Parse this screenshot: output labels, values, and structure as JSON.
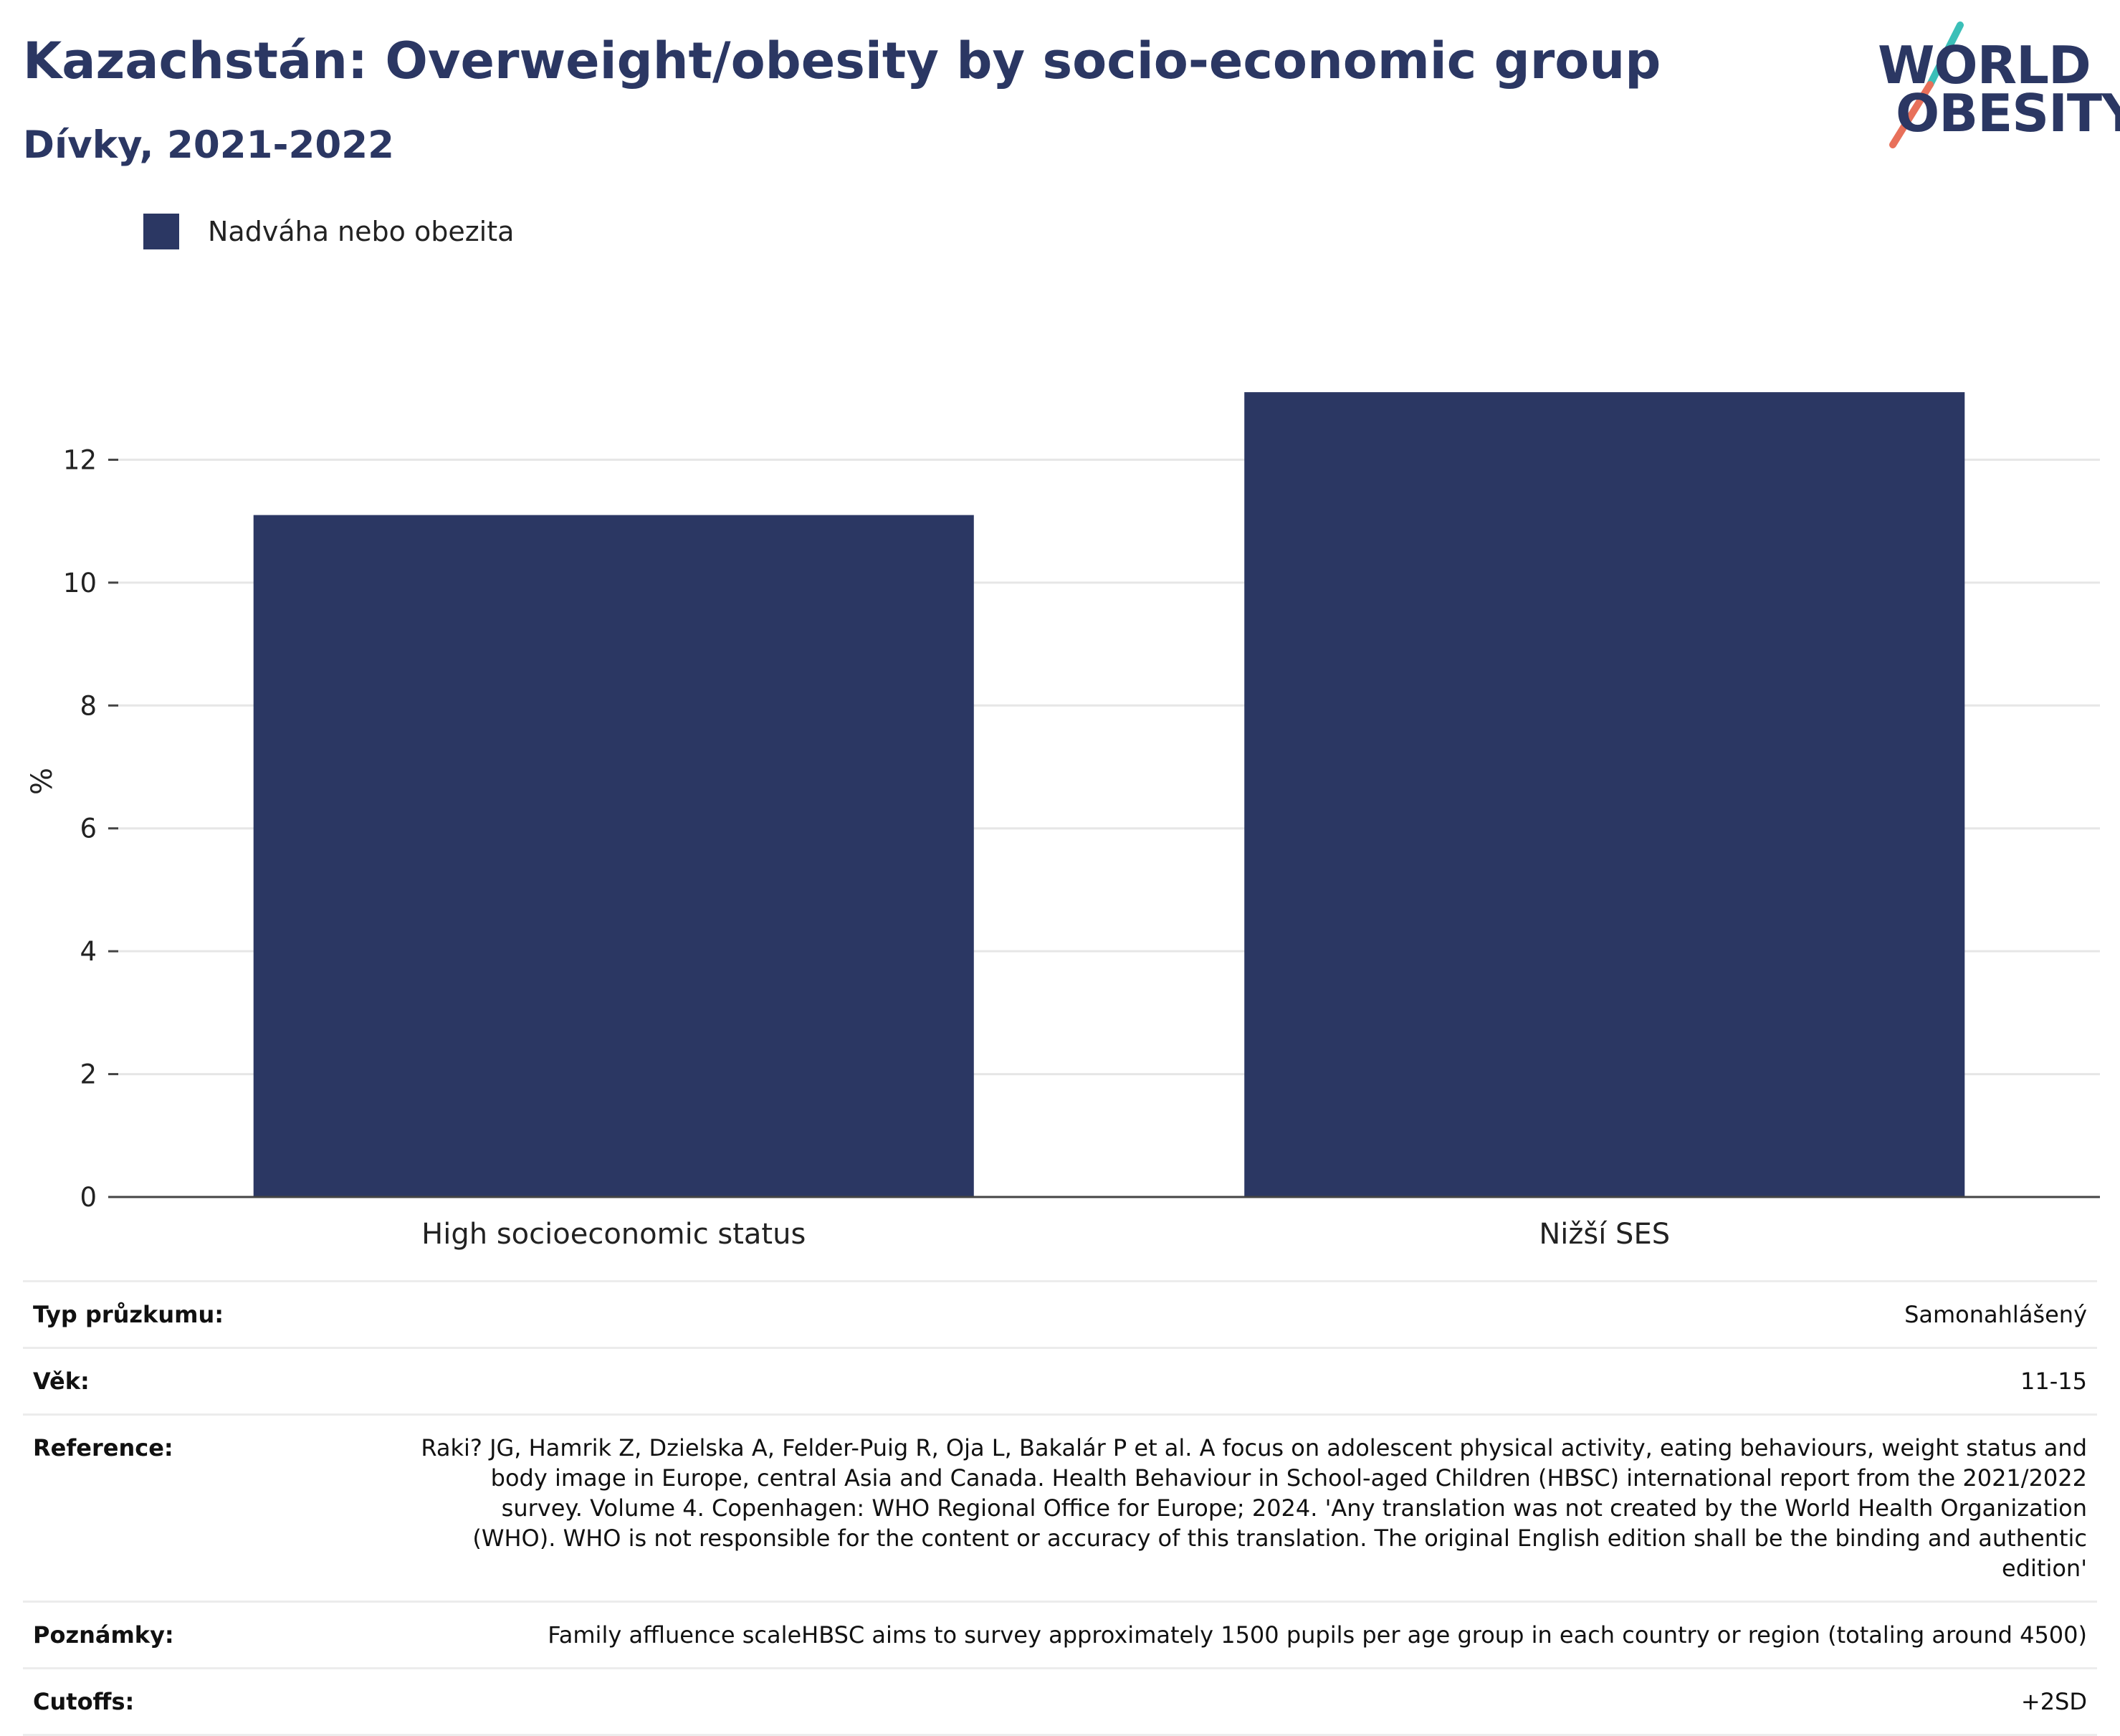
{
  "title": "Kazachstán: Overweight/obesity by socio-economic group",
  "subtitle": "Dívky, 2021-2022",
  "logo": {
    "line1": "WORLD",
    "line2": "OBESITY",
    "colors": {
      "navy": "#2b3763",
      "teal": "#3bbfb8",
      "coral": "#e8705a"
    }
  },
  "legend": {
    "label": "Nadváha nebo obezita",
    "color": "#2b3763"
  },
  "chart_data": {
    "type": "bar",
    "categories": [
      "High socioeconomic status",
      "Nižší SES"
    ],
    "series": [
      {
        "name": "Nadváha nebo obezita",
        "values": [
          11.1,
          13.1
        ],
        "color": "#2b3763"
      }
    ],
    "ylabel": "%",
    "xlabel": "",
    "ylim": [
      0,
      14
    ],
    "yticks": [
      0,
      2,
      4,
      6,
      8,
      10,
      12
    ],
    "grid": true,
    "legend_position": "top-left"
  },
  "info": [
    {
      "key": "Typ průzkumu:",
      "value": "Samonahlášený"
    },
    {
      "key": "Věk:",
      "value": "11-15"
    },
    {
      "key": "Reference:",
      "value": "Raki? JG, Hamrik Z, Dzielska A, Felder-Puig R, Oja L, Bakalár P et al. A focus on adolescent physical activity, eating behaviours, weight status and body image in Europe, central Asia and Canada. Health Behaviour in School-aged Children (HBSC) international report from the 2021/2022 survey. Volume 4. Copenhagen: WHO Regional Office for Europe; 2024. 'Any translation was not created by the World Health Organization (WHO). WHO is not responsible for the content or accuracy of this translation. The original English edition shall be the binding and authentic edition'"
    },
    {
      "key": "Poznámky:",
      "value": "Family affluence scaleHBSC aims to survey approximately 1500 pupils per age group in each country or region (totaling around 4500)"
    },
    {
      "key": "Cutoffs:",
      "value": "+2SD"
    }
  ]
}
